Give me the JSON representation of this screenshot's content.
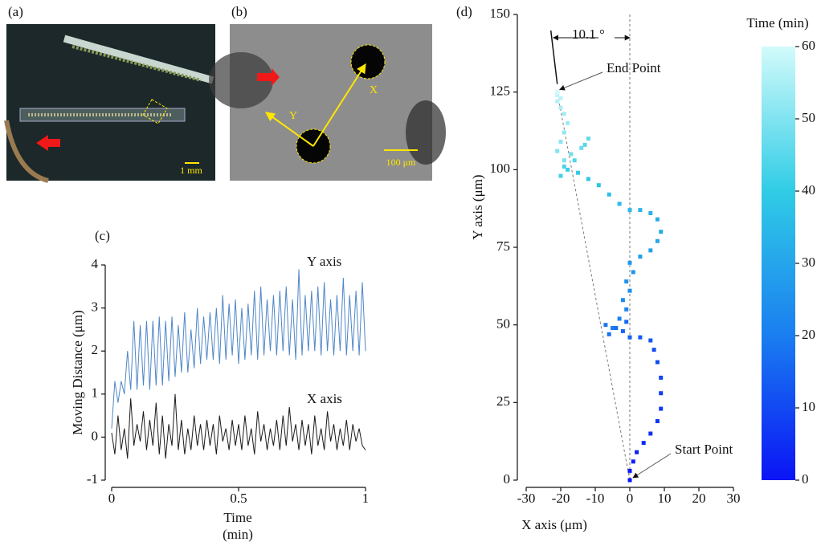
{
  "figure": {
    "panel_labels": [
      "(a)",
      "(b)",
      "(c)",
      "(d)"
    ]
  },
  "images": [
    {
      "scale_bar": "1 mm"
    },
    {
      "scale_bar": "100 μm",
      "arrow_labels": [
        "Y",
        "X"
      ]
    }
  ],
  "chart_data": [
    {
      "type": "line",
      "x": [
        0,
        0.0125,
        0.025,
        0.0375,
        0.05,
        0.0625,
        0.075,
        0.0875,
        0.1,
        0.1125,
        0.125,
        0.1375,
        0.15,
        0.1625,
        0.175,
        0.1875,
        0.2,
        0.2125,
        0.225,
        0.2375,
        0.25,
        0.2625,
        0.275,
        0.2875,
        0.3,
        0.3125,
        0.325,
        0.3375,
        0.35,
        0.3625,
        0.375,
        0.3875,
        0.4,
        0.4125,
        0.425,
        0.4375,
        0.45,
        0.4625,
        0.475,
        0.4875,
        0.5,
        0.5125,
        0.525,
        0.5375,
        0.55,
        0.5625,
        0.575,
        0.5875,
        0.6,
        0.6125,
        0.625,
        0.6375,
        0.65,
        0.6625,
        0.675,
        0.6875,
        0.7,
        0.7125,
        0.725,
        0.7375,
        0.75,
        0.7625,
        0.775,
        0.7875,
        0.8,
        0.8125,
        0.825,
        0.8375,
        0.85,
        0.8625,
        0.875,
        0.8875,
        0.9,
        0.9125,
        0.925,
        0.9375,
        0.95,
        0.9625,
        0.975,
        0.9875,
        1
      ],
      "xlim": [
        0,
        1
      ],
      "xticks": [
        0,
        0.5,
        1
      ],
      "ylim": [
        -1,
        4
      ],
      "yticks": [
        -1,
        0,
        1,
        2,
        3,
        4
      ],
      "xlabel": [
        "Time",
        "(min)"
      ],
      "ylabel": "Moving Distance (μm)",
      "series": [
        {
          "name": "Y axis",
          "color": "#4f86c6",
          "values": [
            0.2,
            1.3,
            0.8,
            1.3,
            1.0,
            2.0,
            1.1,
            2.7,
            1.1,
            2.6,
            1.2,
            2.7,
            1.1,
            2.7,
            1.2,
            2.8,
            1.2,
            2.7,
            1.3,
            2.8,
            1.4,
            2.6,
            1.5,
            2.9,
            1.5,
            2.5,
            1.6,
            3.0,
            1.7,
            2.8,
            1.8,
            2.9,
            1.8,
            3.0,
            1.7,
            3.3,
            1.8,
            3.1,
            1.9,
            3.2,
            1.7,
            3.0,
            1.8,
            3.1,
            1.9,
            3.4,
            1.8,
            3.5,
            1.9,
            3.2,
            2.0,
            3.3,
            1.9,
            3.4,
            2.0,
            3.5,
            1.9,
            3.2,
            1.8,
            3.9,
            1.9,
            3.3,
            2.0,
            3.4,
            2.0,
            3.5,
            1.9,
            3.6,
            2.0,
            3.2,
            1.9,
            3.3,
            2.0,
            3.7,
            1.9,
            3.3,
            2.0,
            3.4,
            1.9,
            3.6,
            2.0
          ]
        },
        {
          "name": "X axis",
          "color": "#1a1a1a",
          "values": [
            0.1,
            -0.4,
            0.5,
            -0.3,
            0.2,
            -0.5,
            0.9,
            -0.2,
            0.3,
            -0.1,
            0.6,
            -0.3,
            0.4,
            -0.2,
            0.8,
            -0.4,
            0.5,
            -0.5,
            0.3,
            -0.2,
            1.0,
            -0.3,
            0.4,
            -0.4,
            0.2,
            -0.3,
            0.5,
            -0.2,
            0.3,
            -0.3,
            0.4,
            -0.2,
            0.3,
            -0.4,
            0.5,
            -0.1,
            0.2,
            -0.3,
            0.4,
            -0.2,
            0.3,
            -0.3,
            0.5,
            -0.2,
            0.2,
            -0.4,
            0.6,
            -0.1,
            0.3,
            -0.3,
            0.2,
            -0.2,
            0.4,
            -0.3,
            0.5,
            -0.2,
            0.7,
            -0.1,
            0.3,
            -0.3,
            0.4,
            -0.2,
            0.3,
            -0.4,
            0.5,
            -0.2,
            0.2,
            -0.3,
            0.6,
            -0.1,
            0.3,
            -0.3,
            0.2,
            -0.2,
            0.4,
            -0.3,
            0.3,
            -0.1,
            0.2,
            -0.2,
            -0.3
          ]
        }
      ]
    },
    {
      "type": "scatter",
      "x": [
        0,
        0,
        1,
        2,
        4,
        6,
        8,
        9,
        9,
        9,
        8,
        7,
        6,
        3,
        0,
        -2,
        -1,
        -4,
        -6,
        -7,
        -5,
        -3,
        -1,
        -2,
        0,
        -1,
        1,
        0,
        3,
        6,
        8,
        9,
        8,
        6,
        3,
        0,
        -3,
        -6,
        -9,
        -12,
        -15,
        -18,
        -20,
        -19,
        -16,
        -13,
        -12,
        -14,
        -17,
        -19,
        -21,
        -20,
        -19,
        -18,
        -19,
        -20,
        -21,
        -20,
        -21,
        -21,
        -21
      ],
      "values": [
        0,
        3,
        6,
        9,
        12,
        15,
        19,
        23,
        28,
        33,
        38,
        42,
        45,
        46,
        46,
        48,
        51,
        49,
        47,
        50,
        49,
        52,
        55,
        58,
        61,
        64,
        67,
        70,
        72,
        74,
        77,
        80,
        84,
        86,
        87,
        87,
        89,
        92,
        95,
        97,
        99,
        100,
        98,
        101,
        103,
        108,
        110,
        107,
        105,
        103,
        106,
        109,
        112,
        115,
        118,
        120,
        122,
        123,
        124,
        125,
        125
      ],
      "time": [
        0,
        1,
        2,
        3,
        4,
        5,
        6,
        7,
        8,
        9,
        10,
        11,
        12,
        13,
        14,
        15,
        16,
        17,
        18,
        19,
        20,
        21,
        22,
        23,
        24,
        25,
        26,
        27,
        28,
        29,
        30,
        31,
        32,
        33,
        34,
        35,
        36,
        37,
        38,
        39,
        40,
        41,
        42,
        43,
        44,
        45,
        46,
        47,
        48,
        49,
        50,
        51,
        52,
        53,
        54,
        55,
        56,
        57,
        58,
        59,
        60
      ],
      "xlim": [
        -30,
        30
      ],
      "xticks": [
        -30,
        -20,
        -10,
        0,
        10,
        20,
        30
      ],
      "ylim": [
        0,
        150
      ],
      "yticks": [
        0,
        25,
        50,
        75,
        100,
        125,
        150
      ],
      "xlabel": "X axis (μm)",
      "ylabel": "Y axis (μm)",
      "colorbar": {
        "label": "Time (min)",
        "lim": [
          0,
          60
        ],
        "ticks": [
          0,
          10,
          20,
          30,
          40,
          50,
          60
        ],
        "colors": [
          "#0a14f5",
          "#1a7ef0",
          "#30cce6",
          "#d2fbfb"
        ]
      },
      "annotations": {
        "end": "End Point",
        "start": "Start Point",
        "angle": "10.1 °"
      }
    }
  ]
}
